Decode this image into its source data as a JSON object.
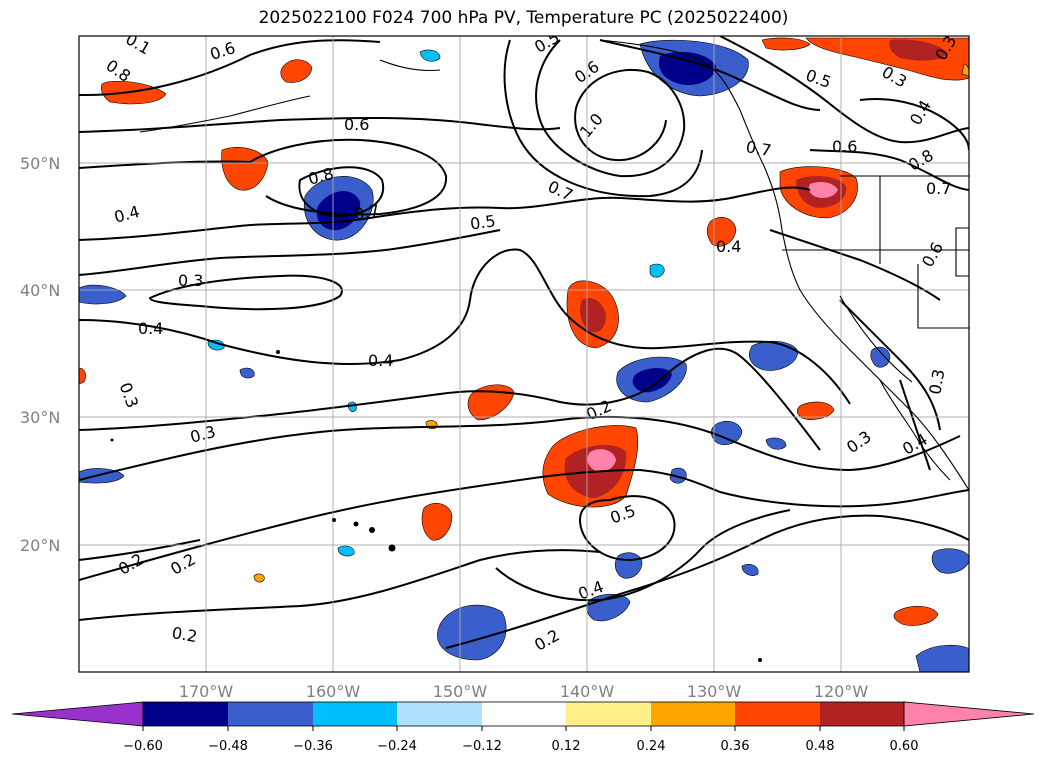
{
  "title": "2025022100 F024 700 hPa PV, Temperature PC (2025022400)",
  "map": {
    "lon_range": [
      -180,
      -110
    ],
    "lat_range": [
      10,
      60
    ],
    "lat_labels": [
      "50°N",
      "40°N",
      "30°N",
      "20°N"
    ],
    "lon_labels": [
      "170°W",
      "160°W",
      "150°W",
      "140°W",
      "130°W",
      "120°W"
    ],
    "grid": true
  },
  "contour_labels": [
    "0.6",
    "0.8",
    "0.6",
    "0.7",
    "0.1",
    "0.8",
    "0.7",
    "0.5",
    "0.4",
    "0.3",
    "0.4",
    "0.4",
    "0.3",
    "0.3",
    "0.2",
    "0.2",
    "0.2",
    "0.2",
    "1.0",
    "0.6",
    "0.7",
    "0.5",
    "0.2",
    "0.4",
    "0.3",
    "0.4",
    "0.6",
    "0.5",
    "0.4",
    "0.8",
    "0.7",
    "0.6",
    "0.3",
    "0.4",
    "0.3",
    "0.5",
    "0.3"
  ],
  "colorbar": {
    "ticks": [
      "−0.60",
      "−0.48",
      "−0.36",
      "−0.24",
      "−0.12",
      "0.12",
      "0.24",
      "0.36",
      "0.48",
      "0.60"
    ],
    "colors": [
      "#9932cc",
      "#00008b",
      "#3a5fcd",
      "#00bfff",
      "#b0e2ff",
      "#ffffff",
      "#fff08a",
      "#ffa500",
      "#ff4500",
      "#b22222",
      "#ff82ab",
      "#ff82ab"
    ]
  }
}
